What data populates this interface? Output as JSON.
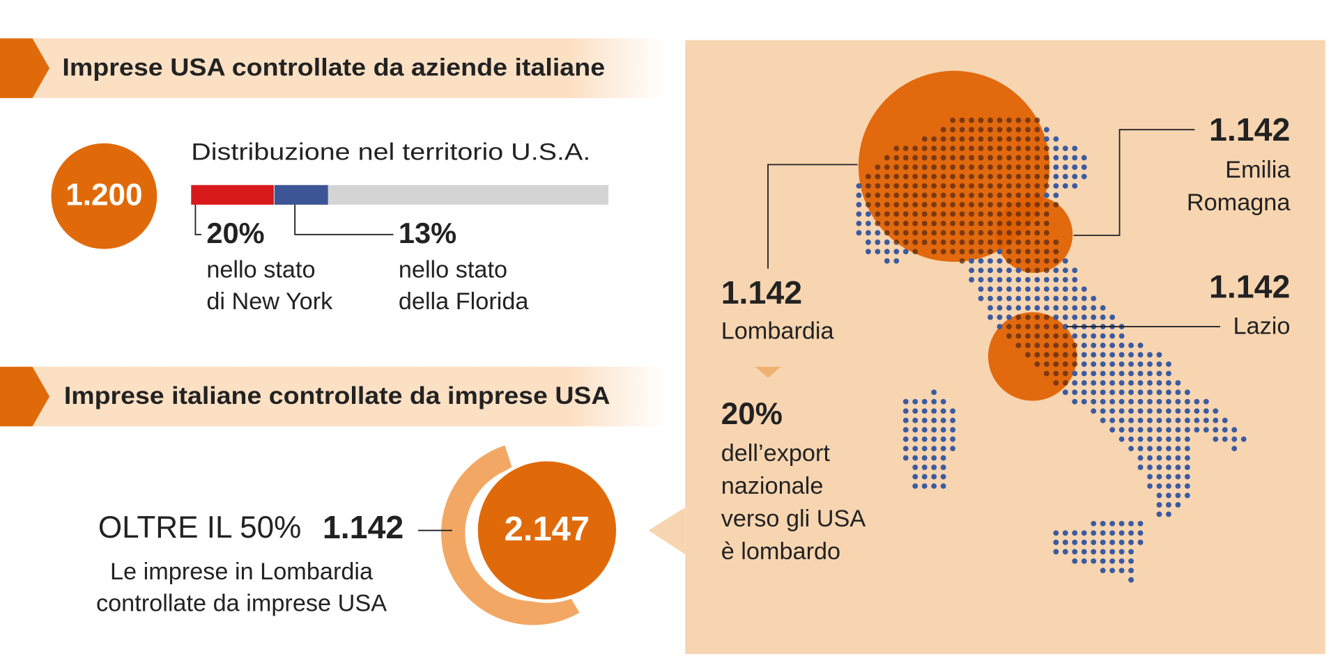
{
  "sections": [
    {
      "title": "Imprese USA controllate da aziende italiane",
      "total": "1.200",
      "distribution": {
        "title": "Distribuzione nel territorio U.S.A.",
        "segments": [
          {
            "value": 20,
            "label": "20%",
            "color": "#d7191c",
            "caption": [
              "nello stato",
              "di New York"
            ]
          },
          {
            "value": 13,
            "label": "13%",
            "color": "#3b5595",
            "caption": [
              "nello stato",
              "della Florida"
            ]
          }
        ]
      }
    },
    {
      "title": "Imprese italiane controllate da imprese USA",
      "headline": "OLTRE IL 50%",
      "lombardia": "1.142",
      "caption": [
        "Le imprese in Lombardia",
        "controllate da imprese USA"
      ],
      "total": "2.147"
    }
  ],
  "map": {
    "regions": [
      {
        "value": "1.142",
        "name": [
          "Lombardia"
        ]
      },
      {
        "value": "1.142",
        "name": [
          "Emilia",
          "Romagna"
        ]
      },
      {
        "value": "1.142",
        "name": [
          "Lazio"
        ]
      }
    ],
    "export": {
      "value": "20%",
      "caption": [
        "dell’export",
        "nazionale",
        "verso gli USA",
        "è lombardo"
      ]
    }
  }
}
